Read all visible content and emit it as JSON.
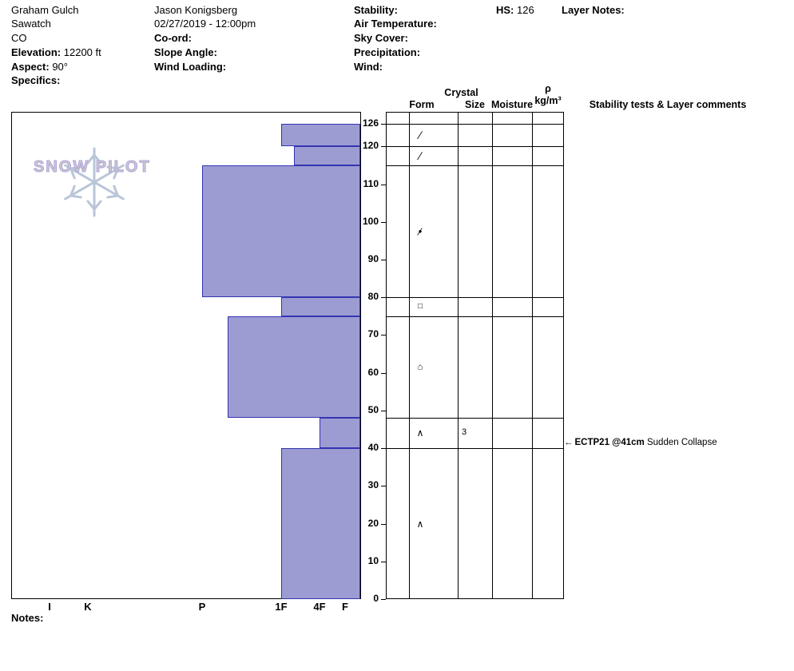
{
  "header": {
    "site": {
      "pit_name": "Graham Gulch",
      "range": "Sawatch",
      "state": "CO",
      "elevation_label": "Elevation:",
      "elevation_value": "12200 ft",
      "aspect_label": "Aspect:",
      "aspect_value": "90°",
      "specifics_label": "Specifics:"
    },
    "observer": {
      "name": "Jason Konigsberg",
      "datetime": "02/27/2019 - 12:00pm",
      "coord_label": "Co-ord:",
      "slope_angle_label": "Slope Angle:",
      "wind_loading_label": "Wind Loading:"
    },
    "weather": {
      "stability_label": "Stability:",
      "air_temperature_label": "Air Temperature:",
      "sky_cover_label": "Sky Cover:",
      "precipitation_label": "Precipitation:",
      "wind_label": "Wind:"
    },
    "hs_label": "HS:",
    "hs_value": "126",
    "layer_notes_label": "Layer Notes:"
  },
  "logo": {
    "text": "SNOW PILOT"
  },
  "table_headers": {
    "crystal": "Crystal",
    "form": "Form",
    "size": "Size",
    "moisture": "Moisture",
    "density_symbol": "ρ",
    "density_unit": "kg/m³",
    "comments": "Stability tests & Layer comments"
  },
  "footer": {
    "notes_label": "Notes:"
  },
  "colors": {
    "layer_fill": "#9c9cd3",
    "layer_border": "#3434b2",
    "grid": "#000000",
    "logo_text_fill": "#cbcbcb",
    "logo_text_outline": "#b0a2dc",
    "logo_snowflake": "#b9c6d8"
  },
  "chart_data": {
    "type": "bar",
    "title": "Snow pit hardness profile",
    "y_unit": "cm",
    "ylim": [
      0,
      126
    ],
    "y_ticks": [
      126,
      120,
      110,
      100,
      90,
      80,
      70,
      60,
      50,
      40,
      30,
      20,
      10,
      0
    ],
    "hardness_axis": [
      "I",
      "K",
      "P",
      "1F",
      "4F",
      "F"
    ],
    "layers": [
      {
        "top_cm": 126,
        "bottom_cm": 120,
        "hardness": "1F"
      },
      {
        "top_cm": 120,
        "bottom_cm": 115,
        "hardness": "1F-4F"
      },
      {
        "top_cm": 115,
        "bottom_cm": 80,
        "hardness": "P"
      },
      {
        "top_cm": 80,
        "bottom_cm": 75,
        "hardness": "1F"
      },
      {
        "top_cm": 75,
        "bottom_cm": 48,
        "hardness": "P-1F"
      },
      {
        "top_cm": 48,
        "bottom_cm": 40,
        "hardness": "4F"
      },
      {
        "top_cm": 40,
        "bottom_cm": 0,
        "hardness": "1F"
      }
    ],
    "grain_forms": [
      {
        "depth_cm": 123,
        "name": "decomposing-fragments",
        "glyphs": [
          "∕"
        ]
      },
      {
        "depth_cm": 117.5,
        "name": "decomposing-fragments",
        "glyphs": [
          "∕"
        ]
      },
      {
        "depth_cm": 97.5,
        "name": "rounds-mixed",
        "glyphs": [
          "●",
          "∕"
        ]
      },
      {
        "depth_cm": 77.5,
        "name": "facets",
        "glyphs": [
          "□"
        ]
      },
      {
        "depth_cm": 61.5,
        "name": "facets-rounding",
        "glyphs": [
          "⌂"
        ]
      },
      {
        "depth_cm": 44,
        "name": "depth-hoar",
        "glyphs": [
          "∧"
        ]
      },
      {
        "depth_cm": 20,
        "name": "depth-hoar",
        "glyphs": [
          "∧"
        ]
      }
    ],
    "grain_sizes": [
      {
        "depth_cm": 44,
        "value": "3"
      }
    ],
    "tests": [
      {
        "depth_cm": 41,
        "arrow": "←",
        "label": "ECTP21 @41cm",
        "result": "Sudden Collapse"
      }
    ]
  }
}
